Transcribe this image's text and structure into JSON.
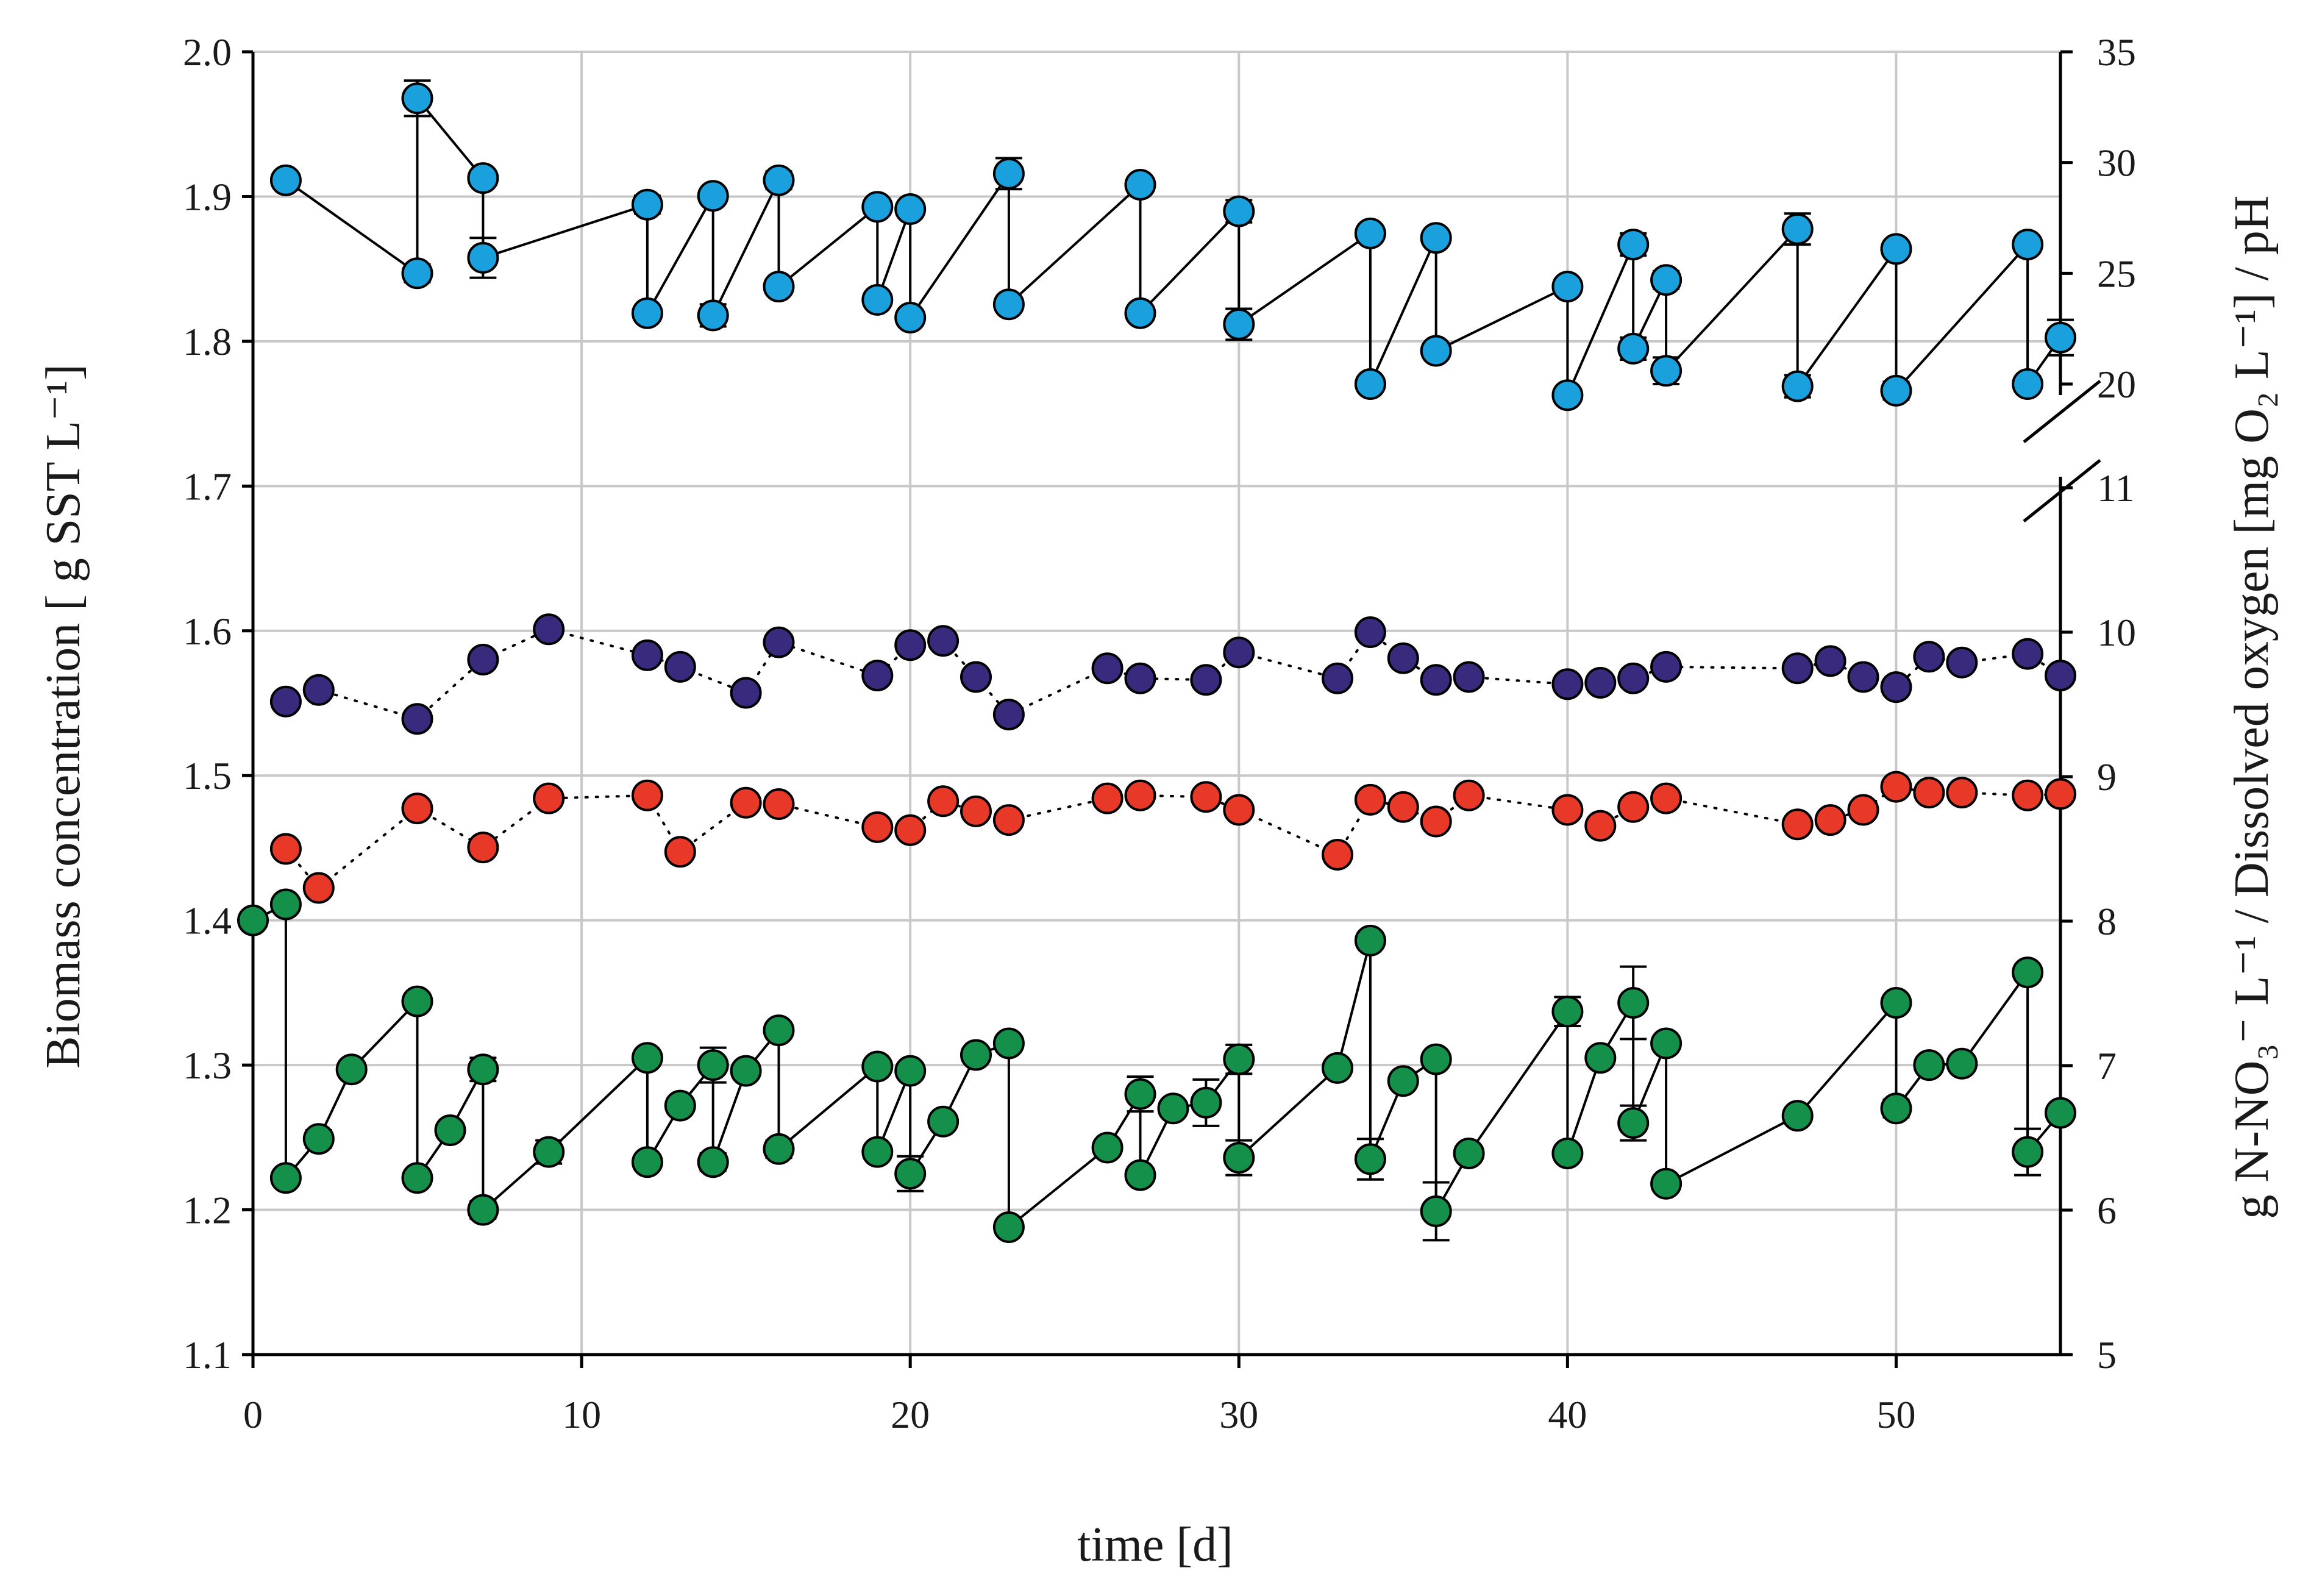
{
  "chart_data": {
    "type": "scatter",
    "xlabel": "time [d]",
    "ylabel_left": "Biomass concentration [ g SST L⁻¹]",
    "ylabel_right": "g N-NO₃⁻ L⁻¹ / Dissolved oxygen [mg O₂ L⁻¹] / pH",
    "xlim": [
      0,
      55
    ],
    "xticks": [
      0,
      10,
      20,
      30,
      40,
      50
    ],
    "xtick_labels": [
      "0",
      "10",
      "20",
      "30",
      "40",
      "50"
    ],
    "ylim_left": [
      1.1,
      2.0
    ],
    "yticks_left": [
      1.1,
      1.2,
      1.3,
      1.4,
      1.5,
      1.6,
      1.7,
      1.8,
      1.9,
      2.0
    ],
    "ytick_labels_left": [
      "1.1",
      "1.2",
      "1.3",
      "1.4",
      "1.5",
      "1.6",
      "1.7",
      "1.8",
      "1.9",
      "2.0"
    ],
    "right_axis": {
      "broken": true,
      "lower_range": [
        5,
        11
      ],
      "upper_range": [
        20,
        35
      ],
      "ticks": [
        5,
        6,
        7,
        8,
        9,
        10,
        11,
        20,
        25,
        30,
        35
      ],
      "tick_labels": [
        "5",
        "6",
        "7",
        "8",
        "9",
        "10",
        "11",
        "20",
        "25",
        "30",
        "35"
      ]
    },
    "grid": true,
    "series": [
      {
        "name": "Dissolved oxygen",
        "color": "#1aa0dc",
        "line": "solid",
        "axis": "right",
        "x": [
          1,
          5,
          5,
          7,
          7,
          12,
          12,
          14,
          14,
          16,
          16,
          19,
          19,
          20,
          20,
          23,
          23,
          27,
          27,
          30,
          30,
          34,
          34,
          36,
          36,
          40,
          40,
          42,
          42,
          43,
          43,
          47,
          47,
          50,
          50,
          54,
          54,
          55
        ],
        "y": [
          29.2,
          25.0,
          32.9,
          29.3,
          25.7,
          28.1,
          23.2,
          28.5,
          23.1,
          29.2,
          24.4,
          28.0,
          23.8,
          27.9,
          23.0,
          29.5,
          23.6,
          29.0,
          23.2,
          27.8,
          22.7,
          26.8,
          20.0,
          26.6,
          21.5,
          24.4,
          19.5,
          26.3,
          21.6,
          24.7,
          20.6,
          27.0,
          19.9,
          26.1,
          19.7,
          26.3,
          20.0,
          22.1
        ],
        "err": [
          0.3,
          0.4,
          0.8,
          0.3,
          0.9,
          0.4,
          0.3,
          0.3,
          0.5,
          0.4,
          0.3,
          0.3,
          0.3,
          0.3,
          0.3,
          0.7,
          0.3,
          0.3,
          0.3,
          0.5,
          0.7,
          0.3,
          0.3,
          0.3,
          0.3,
          0.3,
          0.3,
          0.5,
          0.5,
          0.4,
          0.6,
          0.7,
          0.5,
          0.3,
          0.4,
          0.3,
          0.3,
          0.8
        ]
      },
      {
        "name": "pH",
        "color": "#3a2a7e",
        "line": "dotted",
        "axis": "right",
        "x": [
          1,
          2,
          5,
          7,
          9,
          12,
          13,
          15,
          16,
          19,
          20,
          21,
          22,
          23,
          26,
          27,
          29,
          30,
          33,
          34,
          35,
          36,
          37,
          40,
          41,
          42,
          43,
          47,
          48,
          49,
          50,
          51,
          52,
          54,
          55
        ],
        "y": [
          9.52,
          9.6,
          9.4,
          9.81,
          10.02,
          9.84,
          9.76,
          9.58,
          9.93,
          9.7,
          9.91,
          9.94,
          9.69,
          9.43,
          9.75,
          9.68,
          9.67,
          9.86,
          9.68,
          10.0,
          9.82,
          9.67,
          9.69,
          9.64,
          9.65,
          9.68,
          9.76,
          9.75,
          9.8,
          9.69,
          9.62,
          9.83,
          9.79,
          9.85,
          9.7
        ]
      },
      {
        "name": "N-NO3-",
        "color": "#e83828",
        "line": "dotted",
        "axis": "right",
        "x": [
          1,
          2,
          5,
          7,
          9,
          12,
          13,
          15,
          16,
          19,
          20,
          21,
          22,
          23,
          26,
          27,
          29,
          30,
          33,
          34,
          35,
          36,
          37,
          40,
          41,
          42,
          43,
          47,
          48,
          49,
          50,
          51,
          52,
          54,
          55
        ],
        "y": [
          8.5,
          8.23,
          8.78,
          8.51,
          8.85,
          8.87,
          8.48,
          8.82,
          8.81,
          8.65,
          8.63,
          8.83,
          8.76,
          8.7,
          8.85,
          8.87,
          8.86,
          8.77,
          8.46,
          8.84,
          8.79,
          8.69,
          8.87,
          8.77,
          8.66,
          8.79,
          8.85,
          8.67,
          8.7,
          8.77,
          8.93,
          8.89,
          8.89,
          8.87,
          8.88
        ]
      },
      {
        "name": "Biomass",
        "color": "#14904a",
        "line": "solid",
        "axis": "left",
        "x": [
          0,
          1,
          1,
          2,
          3,
          5,
          5,
          6,
          7,
          7,
          9,
          12,
          12,
          13,
          14,
          14,
          15,
          16,
          16,
          19,
          19,
          20,
          20,
          21,
          22,
          23,
          23,
          26,
          27,
          27,
          28,
          29,
          30,
          30,
          33,
          34,
          34,
          35,
          36,
          36,
          37,
          40,
          40,
          41,
          42,
          42,
          43,
          43,
          47,
          50,
          50,
          51,
          52,
          54,
          54,
          55
        ],
        "y": [
          1.4,
          1.411,
          1.222,
          1.249,
          1.297,
          1.344,
          1.222,
          1.255,
          1.297,
          1.2,
          1.24,
          1.305,
          1.233,
          1.272,
          1.3,
          1.233,
          1.296,
          1.324,
          1.242,
          1.299,
          1.24,
          1.296,
          1.225,
          1.261,
          1.307,
          1.315,
          1.188,
          1.243,
          1.28,
          1.224,
          1.27,
          1.274,
          1.304,
          1.236,
          1.298,
          1.386,
          1.235,
          1.289,
          1.304,
          1.199,
          1.239,
          1.337,
          1.239,
          1.305,
          1.343,
          1.26,
          1.315,
          1.218,
          1.265,
          1.343,
          1.27,
          1.3,
          1.301,
          1.364,
          1.24,
          1.267
        ],
        "err": [
          0,
          0,
          0.004,
          0.006,
          0.004,
          0.004,
          0.004,
          0.004,
          0.008,
          0.006,
          0.008,
          0.004,
          0.004,
          0.004,
          0.012,
          0.006,
          0.004,
          0.004,
          0.006,
          0.004,
          0.004,
          0.004,
          0.012,
          0.004,
          0.004,
          0.004,
          0.004,
          0.004,
          0.012,
          0.004,
          0.004,
          0.016,
          0.01,
          0.012,
          0.004,
          0.004,
          0.014,
          0.004,
          0.004,
          0.02,
          0.004,
          0.01,
          0.004,
          0.004,
          0.025,
          0.012,
          0.004,
          0.004,
          0.004,
          0.004,
          0.006,
          0.004,
          0.004,
          0.004,
          0.016,
          0.004
        ]
      }
    ]
  }
}
